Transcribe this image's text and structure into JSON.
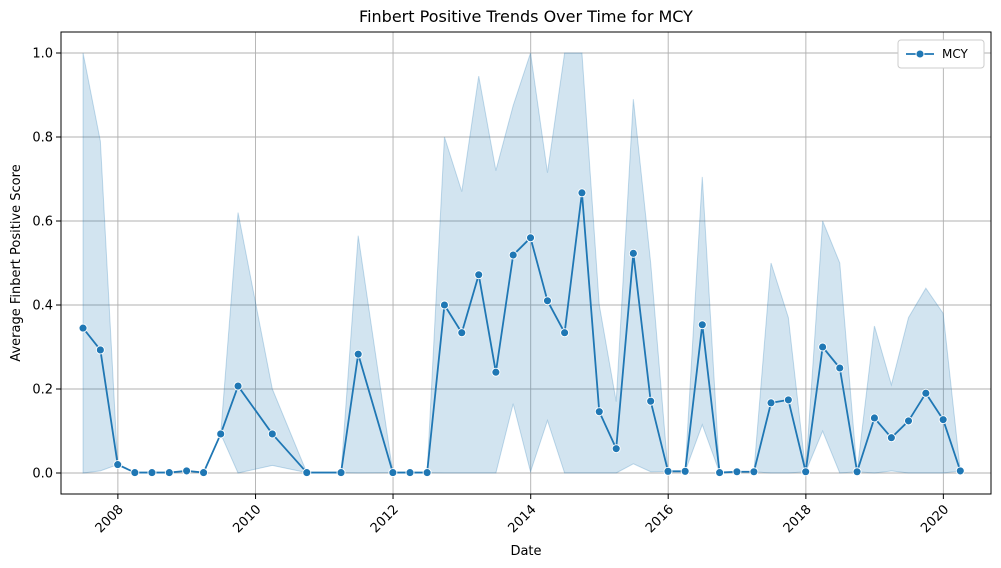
{
  "chart_data": {
    "type": "line",
    "title": "Finbert Positive Trends Over Time for MCY",
    "xlabel": "Date",
    "ylabel": "Average Finbert Positive Score",
    "x_ticks": [
      "2008",
      "2010",
      "2012",
      "2014",
      "2016",
      "2018",
      "2020"
    ],
    "y_ticks": [
      "0.0",
      "0.2",
      "0.4",
      "0.6",
      "0.8",
      "1.0"
    ],
    "xlim": [
      "2007-03-05",
      "2020-09-10"
    ],
    "ylim": [
      -0.05,
      1.05
    ],
    "grid": true,
    "legend_position": "top-right",
    "colors": {
      "line": "#1f77b4",
      "band": "#1f77b4",
      "grid": "#b0b0b0"
    },
    "series": [
      {
        "name": "MCY",
        "marker": "circle",
        "points": [
          {
            "x": "2007-06-30",
            "y": 0.345,
            "lo": 0.0,
            "hi": 1.0
          },
          {
            "x": "2007-09-30",
            "y": 0.293,
            "lo": 0.005,
            "hi": 0.79
          },
          {
            "x": "2007-12-31",
            "y": 0.02,
            "lo": 0.02,
            "hi": 0.02
          },
          {
            "x": "2008-03-31",
            "y": 0.001,
            "lo": 0.001,
            "hi": 0.001
          },
          {
            "x": "2008-06-30",
            "y": 0.001,
            "lo": 0.001,
            "hi": 0.001
          },
          {
            "x": "2008-09-30",
            "y": 0.001,
            "lo": 0.001,
            "hi": 0.001
          },
          {
            "x": "2008-12-31",
            "y": 0.005,
            "lo": 0.005,
            "hi": 0.005
          },
          {
            "x": "2009-03-31",
            "y": 0.001,
            "lo": 0.001,
            "hi": 0.001
          },
          {
            "x": "2009-06-30",
            "y": 0.093,
            "lo": 0.093,
            "hi": 0.093
          },
          {
            "x": "2009-09-30",
            "y": 0.207,
            "lo": 0.0,
            "hi": 0.62
          },
          {
            "x": "2010-03-31",
            "y": 0.093,
            "lo": 0.018,
            "hi": 0.2
          },
          {
            "x": "2010-09-30",
            "y": 0.001,
            "lo": 0.001,
            "hi": 0.001
          },
          {
            "x": "2011-03-31",
            "y": 0.001,
            "lo": 0.001,
            "hi": 0.001
          },
          {
            "x": "2011-06-30",
            "y": 0.283,
            "lo": 0.0,
            "hi": 0.565
          },
          {
            "x": "2011-12-31",
            "y": 0.001,
            "lo": 0.001,
            "hi": 0.001
          },
          {
            "x": "2012-03-31",
            "y": 0.001,
            "lo": 0.001,
            "hi": 0.001
          },
          {
            "x": "2012-06-30",
            "y": 0.001,
            "lo": 0.001,
            "hi": 0.001
          },
          {
            "x": "2012-09-30",
            "y": 0.4,
            "lo": 0.0,
            "hi": 0.8
          },
          {
            "x": "2012-12-31",
            "y": 0.334,
            "lo": 0.0,
            "hi": 0.67
          },
          {
            "x": "2013-03-31",
            "y": 0.472,
            "lo": 0.0,
            "hi": 0.945
          },
          {
            "x": "2013-06-30",
            "y": 0.24,
            "lo": 0.0,
            "hi": 0.72
          },
          {
            "x": "2013-09-30",
            "y": 0.519,
            "lo": 0.165,
            "hi": 0.875
          },
          {
            "x": "2013-12-31",
            "y": 0.56,
            "lo": 0.003,
            "hi": 1.0
          },
          {
            "x": "2014-03-31",
            "y": 0.41,
            "lo": 0.125,
            "hi": 0.715
          },
          {
            "x": "2014-06-30",
            "y": 0.334,
            "lo": 0.0,
            "hi": 1.0
          },
          {
            "x": "2014-09-30",
            "y": 0.667,
            "lo": 0.0,
            "hi": 1.0
          },
          {
            "x": "2014-12-31",
            "y": 0.146,
            "lo": 0.0,
            "hi": 0.4
          },
          {
            "x": "2015-03-31",
            "y": 0.058,
            "lo": 0.0,
            "hi": 0.17
          },
          {
            "x": "2015-06-30",
            "y": 0.523,
            "lo": 0.022,
            "hi": 0.89
          },
          {
            "x": "2015-09-30",
            "y": 0.171,
            "lo": 0.003,
            "hi": 0.5
          },
          {
            "x": "2015-12-31",
            "y": 0.004,
            "lo": 0.004,
            "hi": 0.004
          },
          {
            "x": "2016-03-31",
            "y": 0.004,
            "lo": 0.004,
            "hi": 0.004
          },
          {
            "x": "2016-06-30",
            "y": 0.353,
            "lo": 0.115,
            "hi": 0.705
          },
          {
            "x": "2016-09-30",
            "y": 0.001,
            "lo": 0.001,
            "hi": 0.001
          },
          {
            "x": "2016-12-31",
            "y": 0.003,
            "lo": 0.003,
            "hi": 0.003
          },
          {
            "x": "2017-03-31",
            "y": 0.003,
            "lo": 0.003,
            "hi": 0.003
          },
          {
            "x": "2017-06-30",
            "y": 0.167,
            "lo": 0.0,
            "hi": 0.5
          },
          {
            "x": "2017-09-30",
            "y": 0.174,
            "lo": 0.0,
            "hi": 0.37
          },
          {
            "x": "2017-12-31",
            "y": 0.003,
            "lo": 0.003,
            "hi": 0.003
          },
          {
            "x": "2018-03-31",
            "y": 0.3,
            "lo": 0.1,
            "hi": 0.6
          },
          {
            "x": "2018-06-30",
            "y": 0.25,
            "lo": 0.0,
            "hi": 0.5
          },
          {
            "x": "2018-09-30",
            "y": 0.003,
            "lo": 0.003,
            "hi": 0.003
          },
          {
            "x": "2018-12-31",
            "y": 0.131,
            "lo": 0.0,
            "hi": 0.35
          },
          {
            "x": "2019-03-31",
            "y": 0.084,
            "lo": 0.005,
            "hi": 0.21
          },
          {
            "x": "2019-06-30",
            "y": 0.124,
            "lo": 0.0,
            "hi": 0.37
          },
          {
            "x": "2019-09-30",
            "y": 0.19,
            "lo": 0.0,
            "hi": 0.44
          },
          {
            "x": "2019-12-31",
            "y": 0.127,
            "lo": 0.0,
            "hi": 0.38
          },
          {
            "x": "2020-03-31",
            "y": 0.005,
            "lo": 0.005,
            "hi": 0.005
          }
        ]
      }
    ]
  }
}
